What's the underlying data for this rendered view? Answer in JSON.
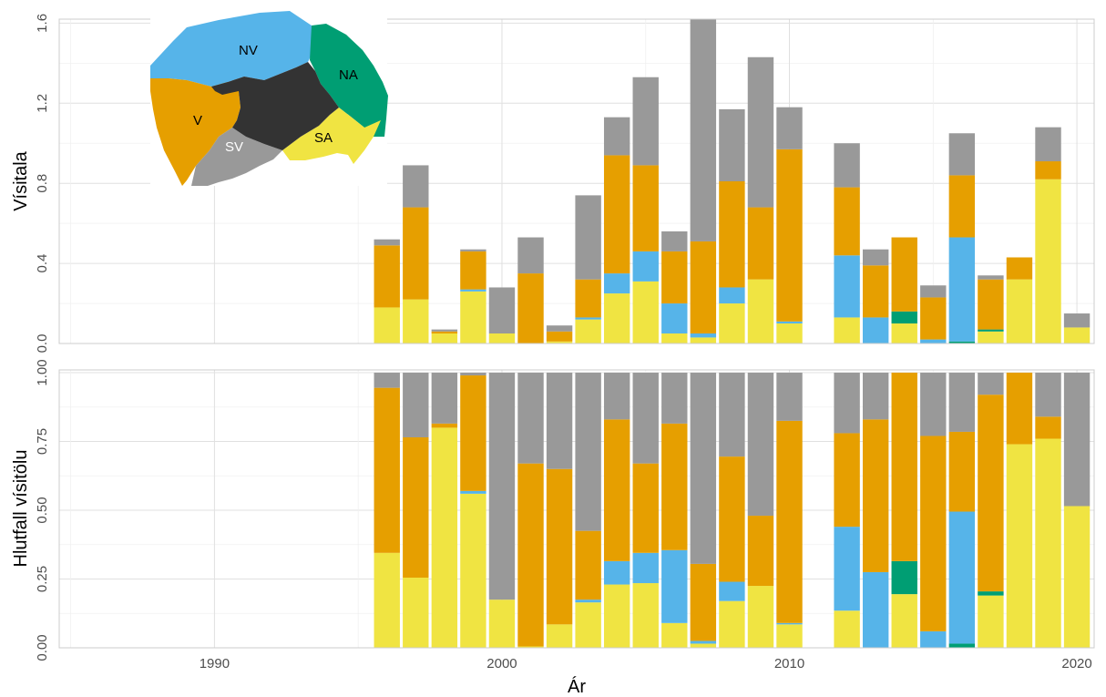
{
  "chart_data": [
    {
      "type": "bar",
      "stacked": true,
      "ylabel": "Vísitala",
      "ylim": [
        0,
        1.62
      ],
      "yticks": [
        "0.0",
        "0.4",
        "0.8",
        "1.2",
        "1.6"
      ],
      "grid": true,
      "x": [
        1996,
        1997,
        1998,
        1999,
        2000,
        2001,
        2002,
        2003,
        2004,
        2005,
        2006,
        2007,
        2008,
        2009,
        2010,
        2012,
        2013,
        2014,
        2015,
        2016,
        2017,
        2018,
        2019,
        2020
      ],
      "series": [
        {
          "region": "SA",
          "color": "#f0e442",
          "values": [
            0.18,
            0.22,
            0.05,
            0.26,
            0.05,
            0.0,
            0.01,
            0.12,
            0.25,
            0.31,
            0.05,
            0.03,
            0.2,
            0.32,
            0.1,
            0.13,
            0.0,
            0.1,
            0.0,
            0.0,
            0.06,
            0.32,
            0.82,
            0.08
          ]
        },
        {
          "region": "NA",
          "color": "#009e73",
          "values": [
            0.0,
            0.0,
            0.0,
            0.0,
            0.0,
            0.0,
            0.0,
            0.0,
            0.0,
            0.0,
            0.0,
            0.0,
            0.0,
            0.0,
            0.0,
            0.0,
            0.0,
            0.06,
            0.0,
            0.01,
            0.01,
            0.0,
            0.0,
            0.0
          ]
        },
        {
          "region": "NV",
          "color": "#56b4e9",
          "values": [
            0.0,
            0.0,
            0.0,
            0.01,
            0.0,
            0.0,
            0.0,
            0.01,
            0.1,
            0.15,
            0.15,
            0.02,
            0.08,
            0.0,
            0.01,
            0.31,
            0.13,
            0.0,
            0.02,
            0.52,
            0.0,
            0.0,
            0.0,
            0.0
          ]
        },
        {
          "region": "V",
          "color": "#e69f00",
          "values": [
            0.31,
            0.46,
            0.01,
            0.19,
            0.0,
            0.35,
            0.05,
            0.19,
            0.59,
            0.43,
            0.26,
            0.46,
            0.53,
            0.36,
            0.86,
            0.34,
            0.26,
            0.37,
            0.21,
            0.31,
            0.25,
            0.11,
            0.09,
            0.0
          ]
        },
        {
          "region": "SV",
          "color": "#999999",
          "values": [
            0.03,
            0.21,
            0.01,
            0.01,
            0.23,
            0.18,
            0.03,
            0.42,
            0.19,
            0.44,
            0.1,
            1.16,
            0.36,
            0.75,
            0.21,
            0.22,
            0.08,
            0.0,
            0.06,
            0.21,
            0.02,
            0.0,
            0.17,
            0.07
          ]
        }
      ]
    },
    {
      "type": "bar",
      "stacked": true,
      "ylabel": "Hlutfall vísitölu",
      "xlabel": "Ár",
      "ylim": [
        0,
        1.01
      ],
      "yticks": [
        "0.00",
        "0.25",
        "0.50",
        "0.75",
        "1.00"
      ],
      "xlim": [
        1984.6,
        2020.6
      ],
      "xticks": [
        "1990",
        "2000",
        "2010",
        "2020"
      ],
      "grid": true,
      "x": [
        1996,
        1997,
        1998,
        1999,
        2000,
        2001,
        2002,
        2003,
        2004,
        2005,
        2006,
        2007,
        2008,
        2009,
        2010,
        2012,
        2013,
        2014,
        2015,
        2016,
        2017,
        2018,
        2019,
        2020
      ],
      "series": [
        {
          "region": "SA",
          "color": "#f0e442",
          "values": [
            0.345,
            0.255,
            0.8,
            0.56,
            0.175,
            0.005,
            0.085,
            0.165,
            0.23,
            0.235,
            0.09,
            0.015,
            0.17,
            0.225,
            0.085,
            0.135,
            0.0,
            0.195,
            0.0,
            0.0,
            0.19,
            0.74,
            0.76,
            0.515
          ]
        },
        {
          "region": "NA",
          "color": "#009e73",
          "values": [
            0.0,
            0.0,
            0.0,
            0.0,
            0.0,
            0.0,
            0.0,
            0.0,
            0.0,
            0.0,
            0.0,
            0.0,
            0.0,
            0.0,
            0.0,
            0.0,
            0.0,
            0.12,
            0.0,
            0.015,
            0.015,
            0.0,
            0.0,
            0.0
          ]
        },
        {
          "region": "NV",
          "color": "#56b4e9",
          "values": [
            0.0,
            0.0,
            0.0,
            0.01,
            0.0,
            0.0,
            0.0,
            0.01,
            0.085,
            0.11,
            0.265,
            0.01,
            0.07,
            0.0,
            0.005,
            0.305,
            0.275,
            0.0,
            0.06,
            0.48,
            0.0,
            0.0,
            0.0,
            0.0
          ]
        },
        {
          "region": "V",
          "color": "#e69f00",
          "values": [
            0.6,
            0.51,
            0.015,
            0.42,
            0.0,
            0.665,
            0.565,
            0.25,
            0.515,
            0.325,
            0.46,
            0.28,
            0.455,
            0.255,
            0.735,
            0.34,
            0.555,
            0.685,
            0.71,
            0.29,
            0.715,
            0.26,
            0.08,
            0.0
          ]
        },
        {
          "region": "SV",
          "color": "#999999",
          "values": [
            0.055,
            0.235,
            0.185,
            0.01,
            0.825,
            0.33,
            0.35,
            0.575,
            0.17,
            0.33,
            0.185,
            0.695,
            0.305,
            0.52,
            0.175,
            0.22,
            0.17,
            0.0,
            0.23,
            0.215,
            0.08,
            0.0,
            0.16,
            0.485
          ]
        }
      ]
    }
  ],
  "inset_map": {
    "colors": {
      "NV": "#56b4e9",
      "NA": "#009e73",
      "V": "#e69f00",
      "SV": "#999999",
      "SA": "#f0e442",
      "interior": "#333333"
    },
    "labels": [
      "NV",
      "NA",
      "V",
      "SV",
      "SA"
    ]
  }
}
